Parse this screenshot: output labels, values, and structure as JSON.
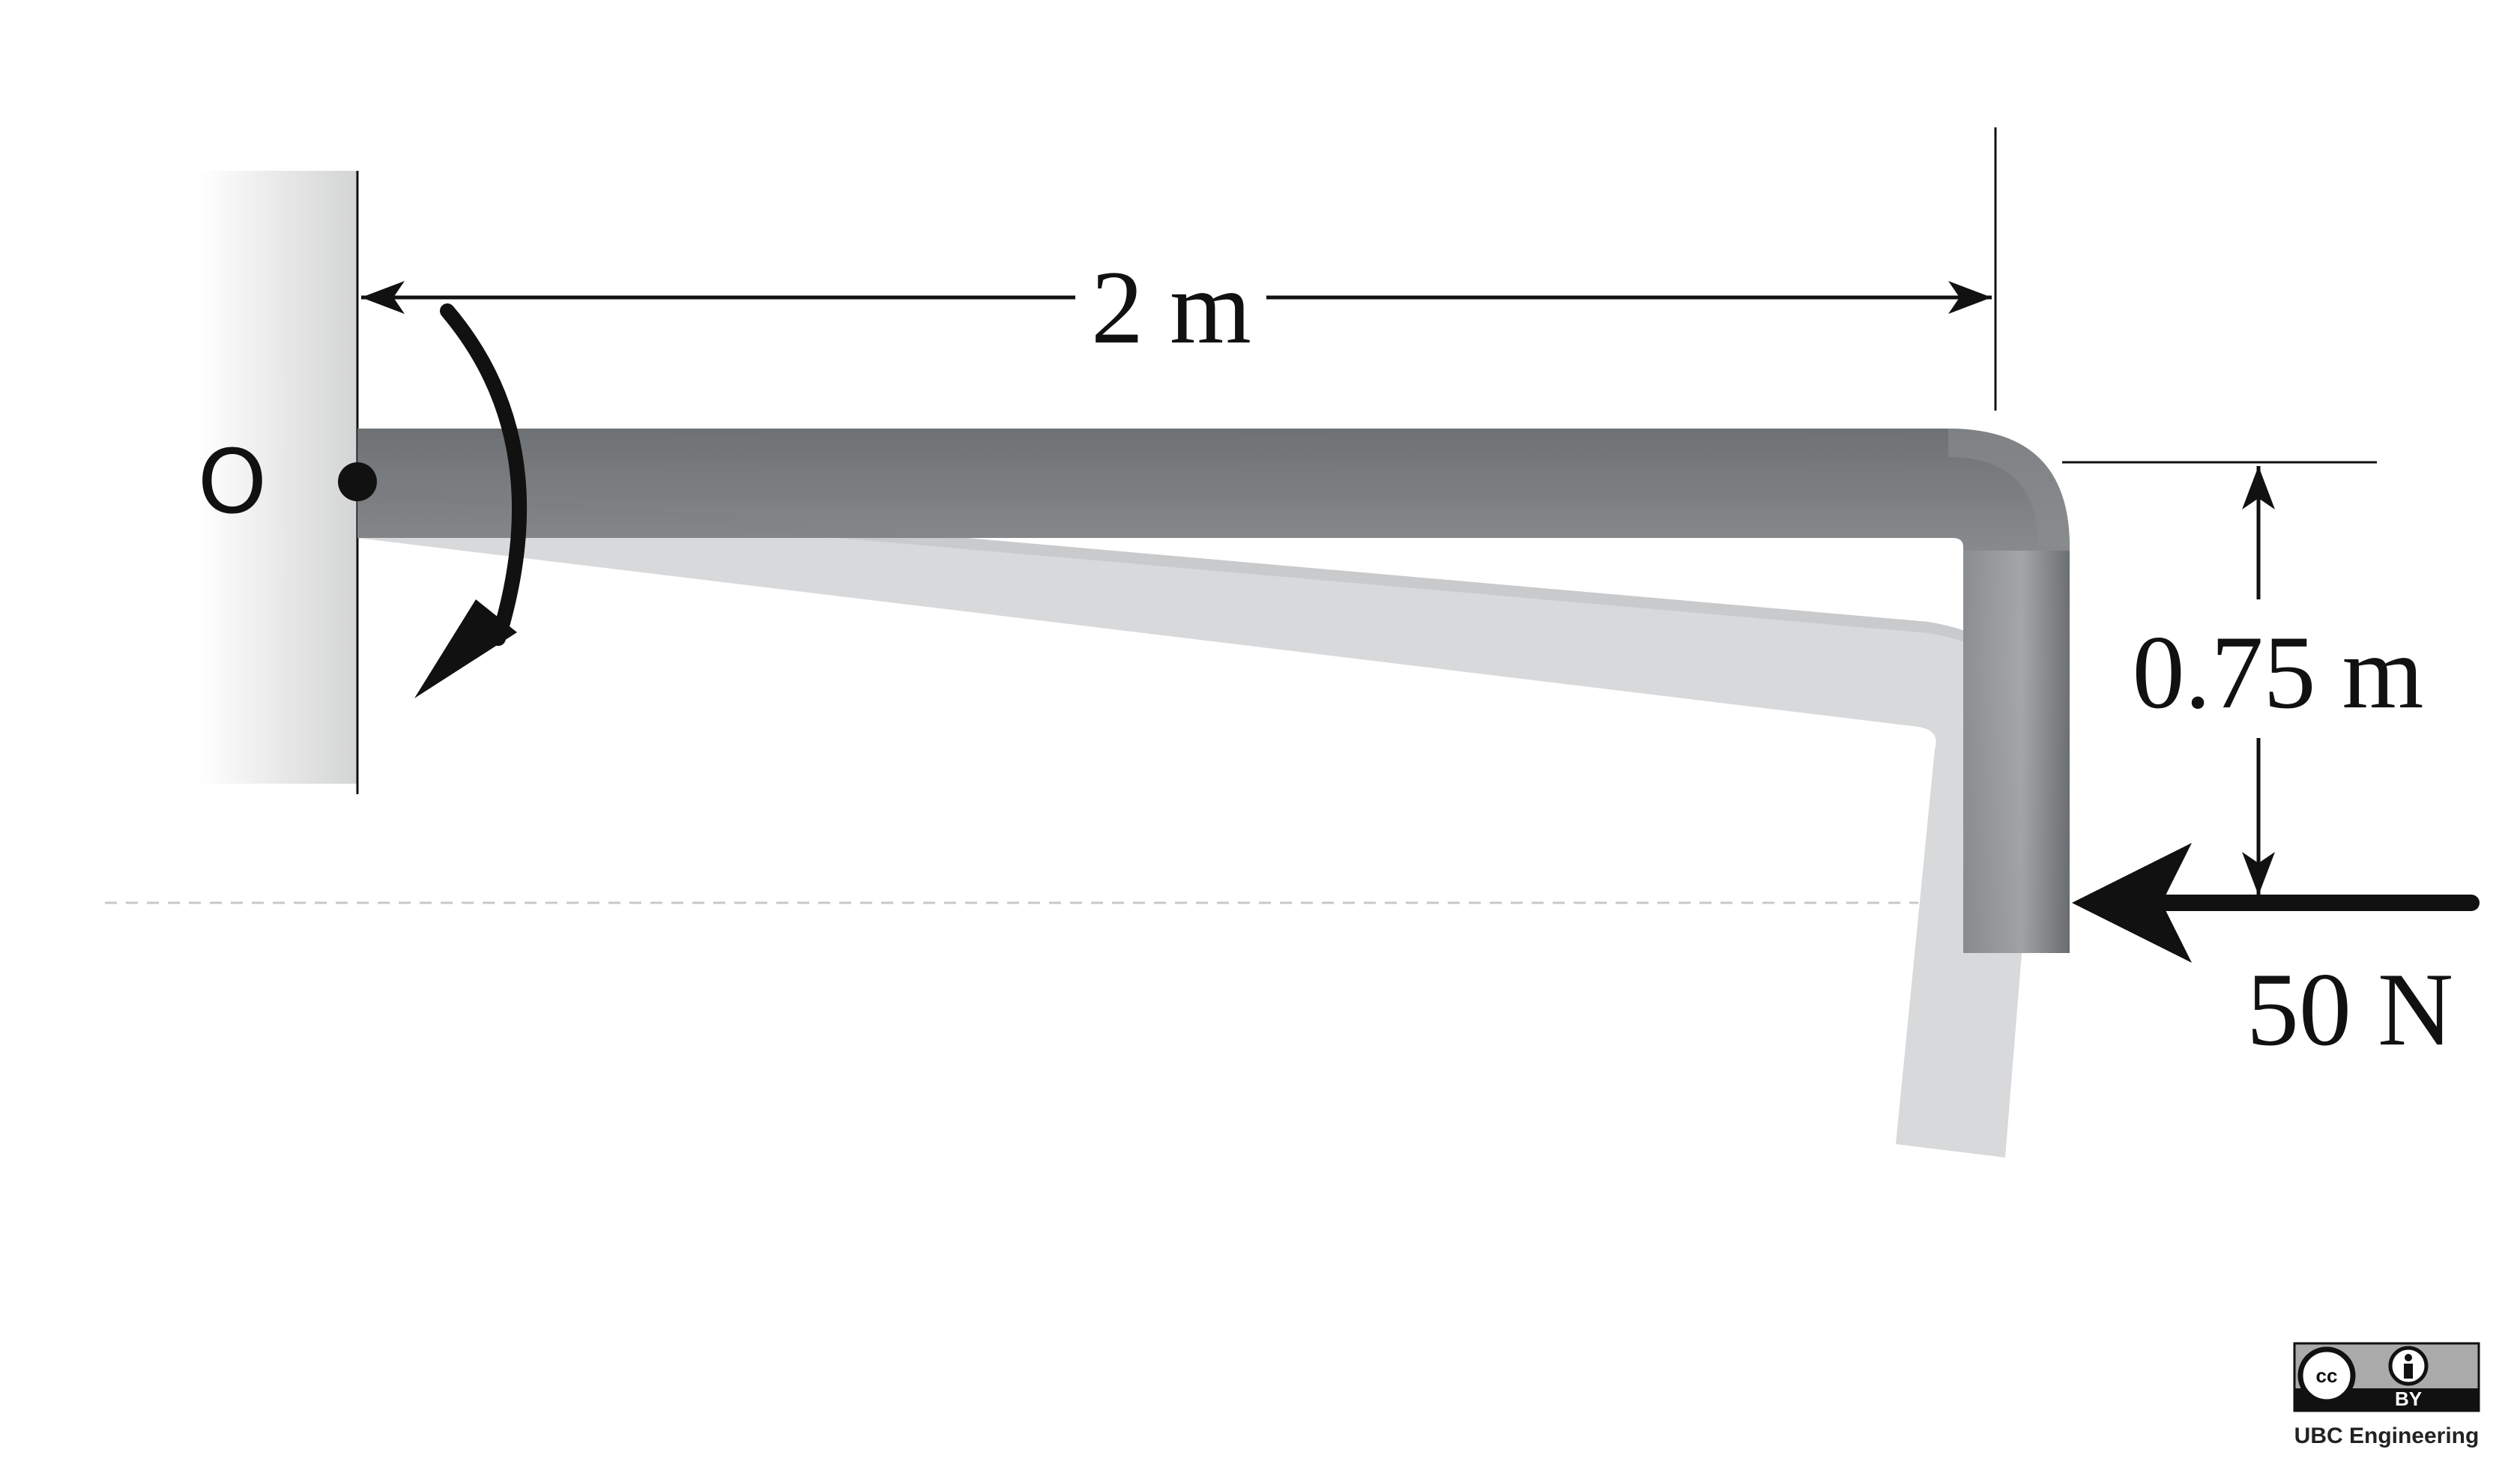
{
  "diagram": {
    "point_label": "O",
    "horizontal_dimension": "2 m",
    "vertical_dimension": "0.75 m",
    "force_label": "50 N"
  },
  "license": {
    "cc_text": "cc",
    "by_text": "BY",
    "attribution": "UBC Engineering"
  },
  "colors": {
    "rod_dark": "#6e7174",
    "rod_light": "#b5b7b9",
    "ghost_rod": "#d2d3d4",
    "wall": "#d9dadb",
    "ink": "#111111"
  }
}
